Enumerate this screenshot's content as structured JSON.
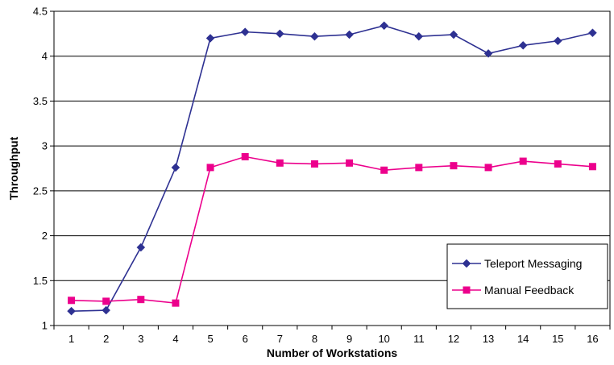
{
  "chart_data": {
    "type": "line",
    "title": "",
    "xlabel": "Number of Workstations",
    "ylabel": "Throughput",
    "x": [
      1,
      2,
      3,
      4,
      5,
      6,
      7,
      8,
      9,
      10,
      11,
      12,
      13,
      14,
      15,
      16
    ],
    "x_tick_labels": [
      "1",
      "2",
      "3",
      "4",
      "5",
      "6",
      "7",
      "8",
      "9",
      "10",
      "11",
      "12",
      "13",
      "14",
      "15",
      "16"
    ],
    "ylim": [
      1,
      4.5
    ],
    "y_ticks": [
      1,
      1.5,
      2,
      2.5,
      3,
      3.5,
      4,
      4.5
    ],
    "y_tick_labels": [
      "1",
      "1.5",
      "2",
      "2.5",
      "3",
      "3.5",
      "4",
      "4.5"
    ],
    "grid": "horizontal",
    "legend_position": "bottom-right",
    "series": [
      {
        "name": "Teleport Messaging",
        "color": "#2E3192",
        "marker": "diamond",
        "values": [
          1.16,
          1.17,
          1.87,
          2.76,
          4.2,
          4.27,
          4.25,
          4.22,
          4.24,
          4.34,
          4.22,
          4.24,
          4.03,
          4.12,
          4.17,
          4.26
        ]
      },
      {
        "name": "Manual Feedback",
        "color": "#EC008C",
        "marker": "square",
        "values": [
          1.28,
          1.27,
          1.29,
          1.25,
          2.76,
          2.88,
          2.81,
          2.8,
          2.81,
          2.73,
          2.76,
          2.78,
          2.76,
          2.83,
          2.8,
          2.77
        ]
      }
    ]
  }
}
